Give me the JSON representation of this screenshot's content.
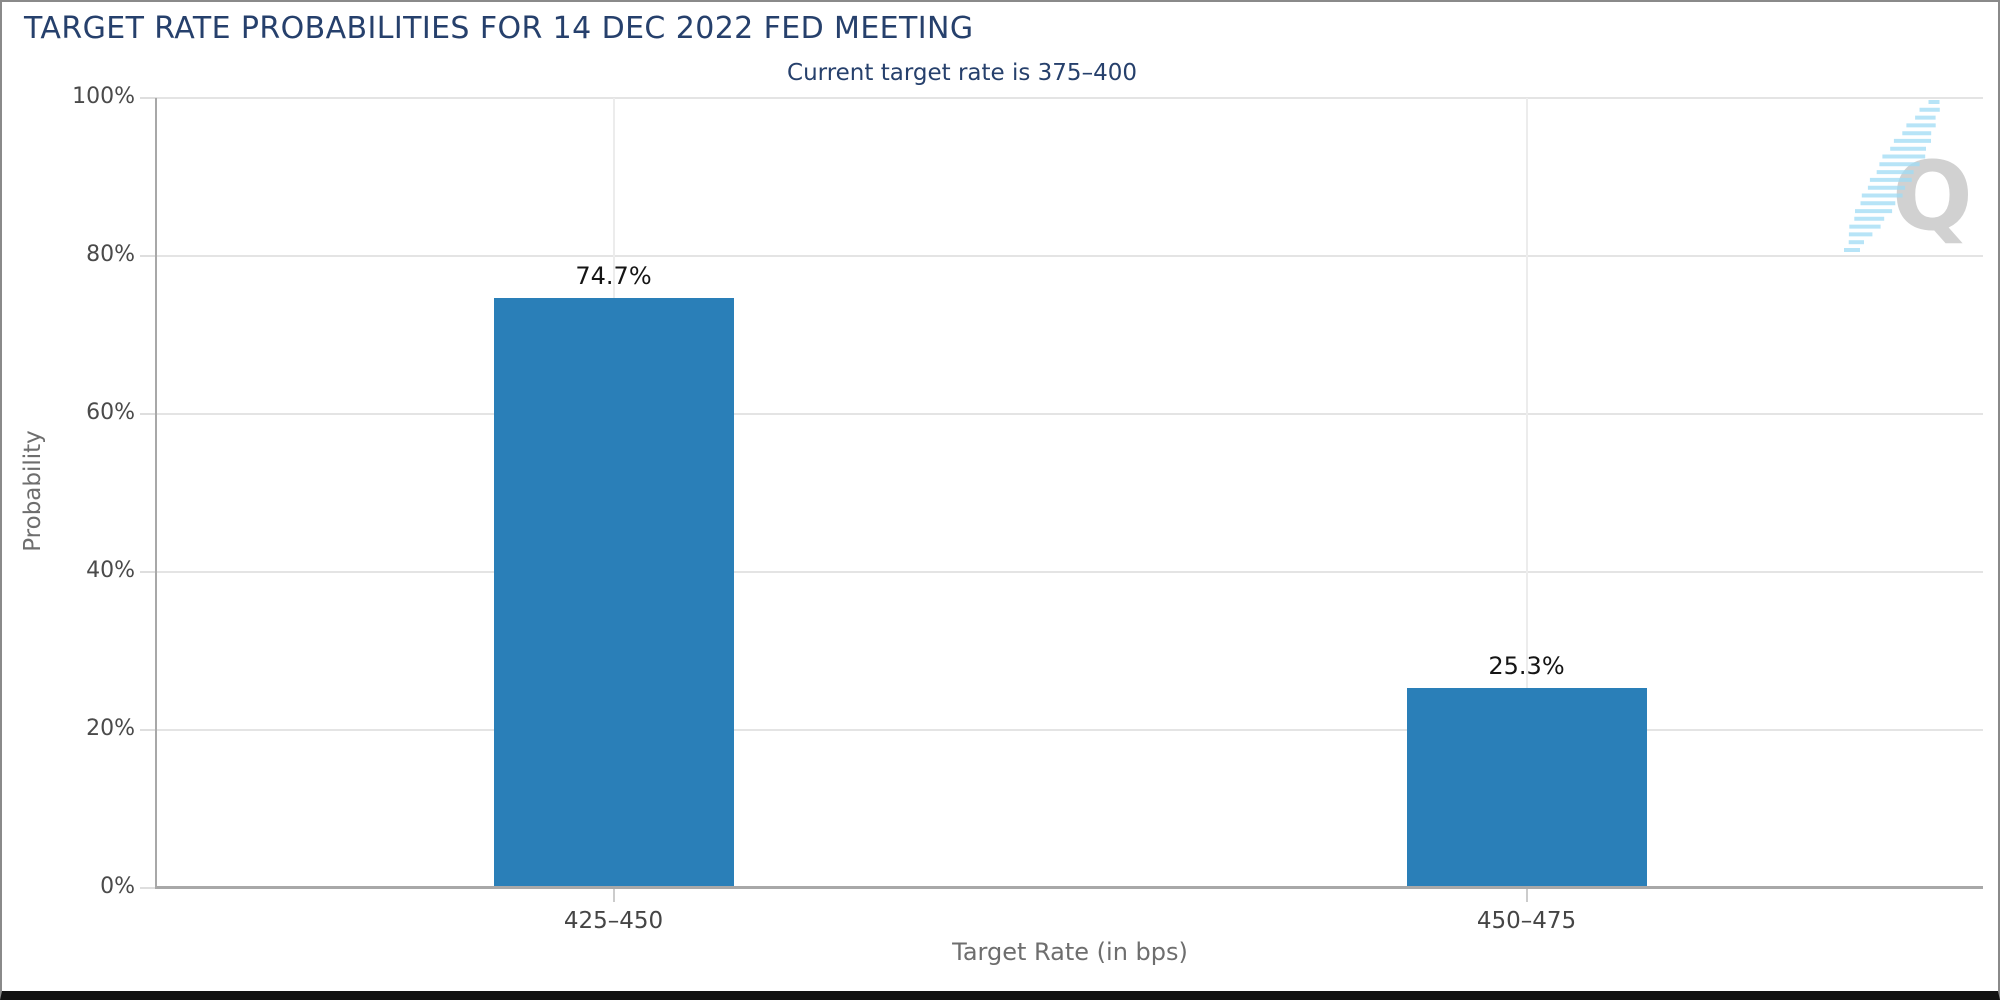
{
  "header": {
    "title": "TARGET RATE PROBABILITIES FOR 14 DEC 2022 FED MEETING",
    "subtitle": "Current target rate is 375–400"
  },
  "watermark": {
    "letter": "Q"
  },
  "colors": {
    "title_navy": "#26406C",
    "bar_blue": "#2A7FB8",
    "gridline": "#e4e4e4",
    "axis_line": "#a8a8a8",
    "tick_text": "#4a4a4a",
    "axis_title_text": "#6e6e6e",
    "value_label_text": "#151515",
    "watermark_gray": "#c9c9c9",
    "watermark_blue": "#9fdcf5"
  },
  "chart_data": {
    "type": "bar",
    "title": "TARGET RATE PROBABILITIES FOR 14 DEC 2022 FED MEETING",
    "subtitle": "Current target rate is 375–400",
    "categories": [
      "425–450",
      "450–475"
    ],
    "values": [
      74.7,
      25.3
    ],
    "value_labels": [
      "74.7%",
      "25.3%"
    ],
    "xlabel": "Target Rate (in bps)",
    "ylabel": "Probability",
    "ylim": [
      0,
      100
    ],
    "ytick_step": 20,
    "ytick_labels": [
      "0%",
      "20%",
      "40%",
      "60%",
      "80%",
      "100%"
    ],
    "grid": true,
    "legend": false,
    "bar_color": "#2A7FB8"
  }
}
